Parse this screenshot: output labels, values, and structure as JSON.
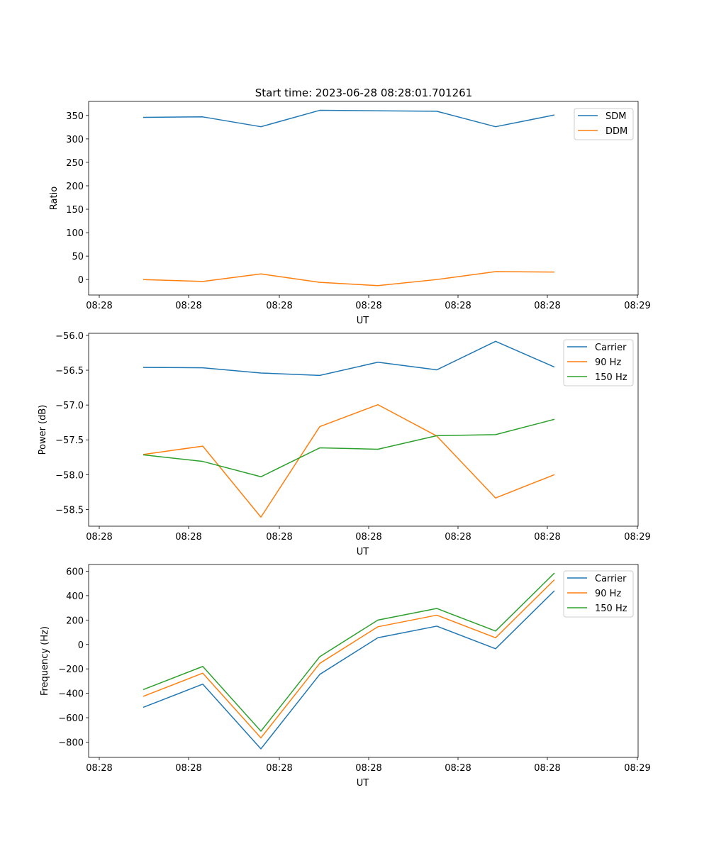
{
  "figure_title": "Start time: 2023-06-28 08:28:01.701261",
  "colors": {
    "blue": "#1f77b4",
    "orange": "#ff7f0e",
    "green": "#2ca02c"
  },
  "chart_data": [
    {
      "type": "line",
      "title": "Start time: 2023-06-28 08:28:01.701261",
      "xlabel": "UT",
      "ylabel": "Ratio",
      "x_tick_labels": [
        "08:28",
        "08:28",
        "08:28",
        "08:28",
        "08:28",
        "08:28",
        "08:28",
        "08:29"
      ],
      "y_ticks": [
        0,
        50,
        100,
        150,
        200,
        250,
        300,
        350
      ],
      "ylim": [
        -33,
        380
      ],
      "x": [
        1,
        2,
        3,
        4,
        5,
        6,
        7,
        8
      ],
      "legend_position": "upper-right",
      "grid": false,
      "series": [
        {
          "name": "SDM",
          "color": "#1f77b4",
          "values": [
            346,
            347,
            326,
            361,
            360,
            359,
            326,
            351
          ]
        },
        {
          "name": "DDM",
          "color": "#ff7f0e",
          "values": [
            0,
            -4,
            12,
            -6,
            -13,
            0,
            17,
            16
          ]
        }
      ]
    },
    {
      "type": "line",
      "title": "",
      "xlabel": "UT",
      "ylabel": "Power (dB)",
      "x_tick_labels": [
        "08:28",
        "08:28",
        "08:28",
        "08:28",
        "08:28",
        "08:28",
        "08:28",
        "08:29"
      ],
      "y_ticks": [
        -58.5,
        -58.0,
        -57.5,
        -57.0,
        -56.5,
        -56.0
      ],
      "y_tick_labels": [
        "−58.5",
        "−58.0",
        "−57.5",
        "−57.0",
        "−56.5",
        "−56.0"
      ],
      "ylim": [
        -58.74,
        -55.97
      ],
      "x": [
        1,
        2,
        3,
        4,
        5,
        6,
        7,
        8
      ],
      "legend_position": "upper-right",
      "grid": false,
      "series": [
        {
          "name": "Carrier",
          "color": "#1f77b4",
          "values": [
            -56.46,
            -56.465,
            -56.54,
            -56.575,
            -56.385,
            -56.495,
            -56.085,
            -56.455
          ]
        },
        {
          "name": "90 Hz",
          "color": "#ff7f0e",
          "values": [
            -57.71,
            -57.59,
            -58.61,
            -57.31,
            -56.995,
            -57.445,
            -58.335,
            -58.0
          ]
        },
        {
          "name": "150 Hz",
          "color": "#2ca02c",
          "values": [
            -57.715,
            -57.81,
            -58.03,
            -57.615,
            -57.635,
            -57.44,
            -57.425,
            -57.205
          ]
        }
      ]
    },
    {
      "type": "line",
      "title": "",
      "xlabel": "UT",
      "ylabel": "Frequency (Hz)",
      "x_tick_labels": [
        "08:28",
        "08:28",
        "08:28",
        "08:28",
        "08:28",
        "08:28",
        "08:28",
        "08:29"
      ],
      "y_ticks": [
        -800,
        -600,
        -400,
        -200,
        0,
        200,
        400,
        600
      ],
      "y_tick_labels": [
        "−800",
        "−600",
        "−400",
        "−200",
        "0",
        "200",
        "400",
        "600"
      ],
      "ylim": [
        -925,
        655
      ],
      "x": [
        1,
        2,
        3,
        4,
        5,
        6,
        7,
        8
      ],
      "legend_position": "upper-right",
      "grid": false,
      "series": [
        {
          "name": "Carrier",
          "color": "#1f77b4",
          "values": [
            -515,
            -325,
            -855,
            -245,
            55,
            150,
            -35,
            440
          ]
        },
        {
          "name": "90 Hz",
          "color": "#ff7f0e",
          "values": [
            -425,
            -235,
            -765,
            -155,
            145,
            240,
            55,
            530
          ]
        },
        {
          "name": "150 Hz",
          "color": "#2ca02c",
          "values": [
            -370,
            -180,
            -710,
            -100,
            200,
            295,
            110,
            585
          ]
        }
      ]
    }
  ]
}
